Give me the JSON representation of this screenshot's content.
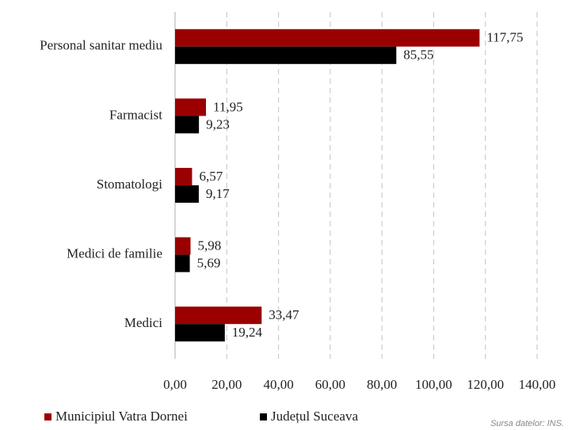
{
  "chart_data": {
    "type": "barh",
    "categories": [
      "Personal sanitar mediu",
      "Farmacist",
      "Stomatologi",
      "Medici de familie",
      "Medici"
    ],
    "series": [
      {
        "name": "Municipiul Vatra Dornei",
        "color": "#9b0000",
        "values": [
          117.75,
          11.95,
          6.57,
          5.98,
          33.47
        ],
        "value_labels": [
          "117,75",
          "11,95",
          "6,57",
          "5,98",
          "33,47"
        ]
      },
      {
        "name": "Județul Suceava",
        "color": "#000000",
        "values": [
          85.55,
          9.23,
          9.17,
          5.69,
          19.24
        ],
        "value_labels": [
          "85,55",
          "9,23",
          "9,17",
          "5,69",
          "19,24"
        ]
      }
    ],
    "xlim": [
      0,
      140
    ],
    "xticks": [
      {
        "value": 0,
        "label": "0,00"
      },
      {
        "value": 20,
        "label": "20,00"
      },
      {
        "value": 40,
        "label": "40,00"
      },
      {
        "value": 60,
        "label": "60,00"
      },
      {
        "value": 80,
        "label": "80,00"
      },
      {
        "value": 100,
        "label": "100,00"
      },
      {
        "value": 120,
        "label": "120,00"
      },
      {
        "value": 140,
        "label": "140,00"
      }
    ],
    "grid": true,
    "legend": "bottom",
    "annotation": "Sursa datelor: INS."
  }
}
